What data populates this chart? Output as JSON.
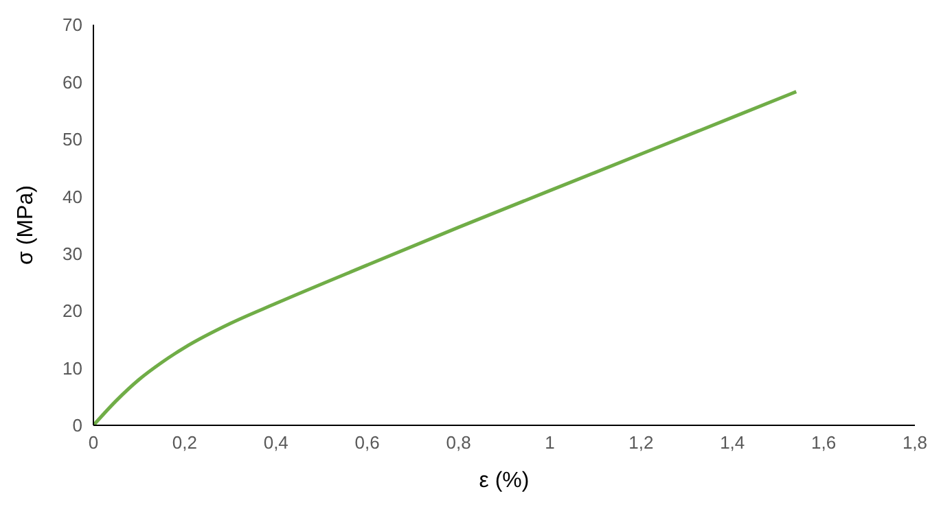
{
  "chart_data": {
    "type": "line",
    "xlabel": "ε (%)",
    "ylabel": "σ (MPa)",
    "x": [
      0,
      0.05,
      0.1,
      0.15,
      0.2,
      0.3,
      0.4,
      0.6,
      0.8,
      1.0,
      1.2,
      1.4,
      1.54
    ],
    "series": [
      {
        "color": "#70ad47",
        "values": [
          0,
          4.3,
          8,
          11,
          13.6,
          17.8,
          21.3,
          28,
          34.6,
          41,
          47.4,
          53.8,
          58.3
        ]
      }
    ],
    "xlim": [
      0,
      1.8
    ],
    "xticks": [
      0,
      {
        "value": 0.2,
        "label": "0,2"
      },
      {
        "value": 0.4,
        "label": "0,4"
      },
      {
        "value": 0.6,
        "label": "0,6"
      },
      {
        "value": 0.8,
        "label": "0,8"
      },
      1,
      {
        "value": 1.2,
        "label": "1,2"
      },
      {
        "value": 1.4,
        "label": "1,4"
      },
      {
        "value": 1.6,
        "label": "1,6"
      },
      {
        "value": 1.8,
        "label": "1,8"
      }
    ],
    "ylim": [
      0,
      70
    ],
    "yticks": [
      0,
      10,
      20,
      30,
      40,
      50,
      60,
      70
    ],
    "grid": false,
    "marker": "none",
    "line_style": "solid",
    "legend": false
  }
}
